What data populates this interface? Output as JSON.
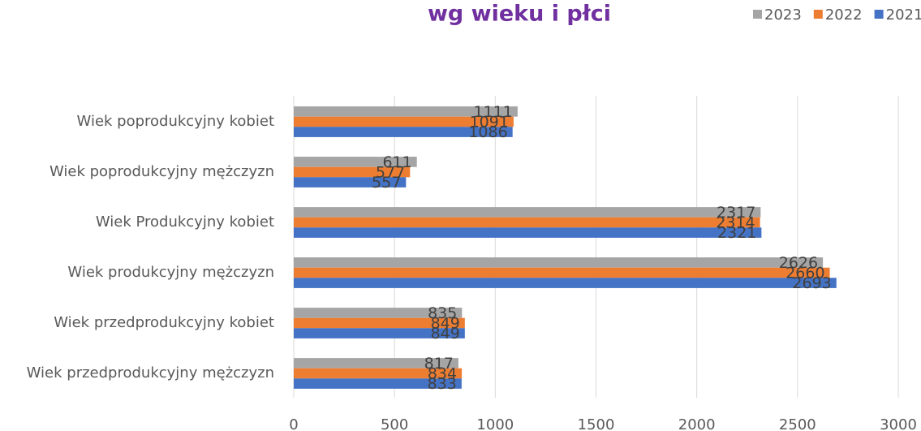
{
  "chart_data": {
    "type": "hbar",
    "title": "wg wieku i płci",
    "categories": [
      "Wiek poprodukcyjny kobiet",
      "Wiek poprodukcyjny mężczyzn",
      "Wiek Produkcyjny kobiet",
      "Wiek produkcyjny mężczyzn",
      "Wiek przedprodukcyjny kobiet",
      "Wiek przedprodukcyjny mężczyzn"
    ],
    "series": [
      {
        "name": "2023",
        "color": "#a5a5a5",
        "values": [
          1111,
          611,
          2317,
          2626,
          835,
          817
        ]
      },
      {
        "name": "2022",
        "color": "#ed7d31",
        "values": [
          1091,
          577,
          2314,
          2660,
          849,
          834
        ]
      },
      {
        "name": "2021",
        "color": "#4472c4",
        "values": [
          1086,
          557,
          2321,
          2693,
          849,
          833
        ]
      }
    ],
    "xlim": [
      0,
      3000
    ],
    "xticks": [
      0,
      500,
      1000,
      1500,
      2000,
      2500,
      3000
    ],
    "grid": true,
    "legend": "top-right"
  }
}
